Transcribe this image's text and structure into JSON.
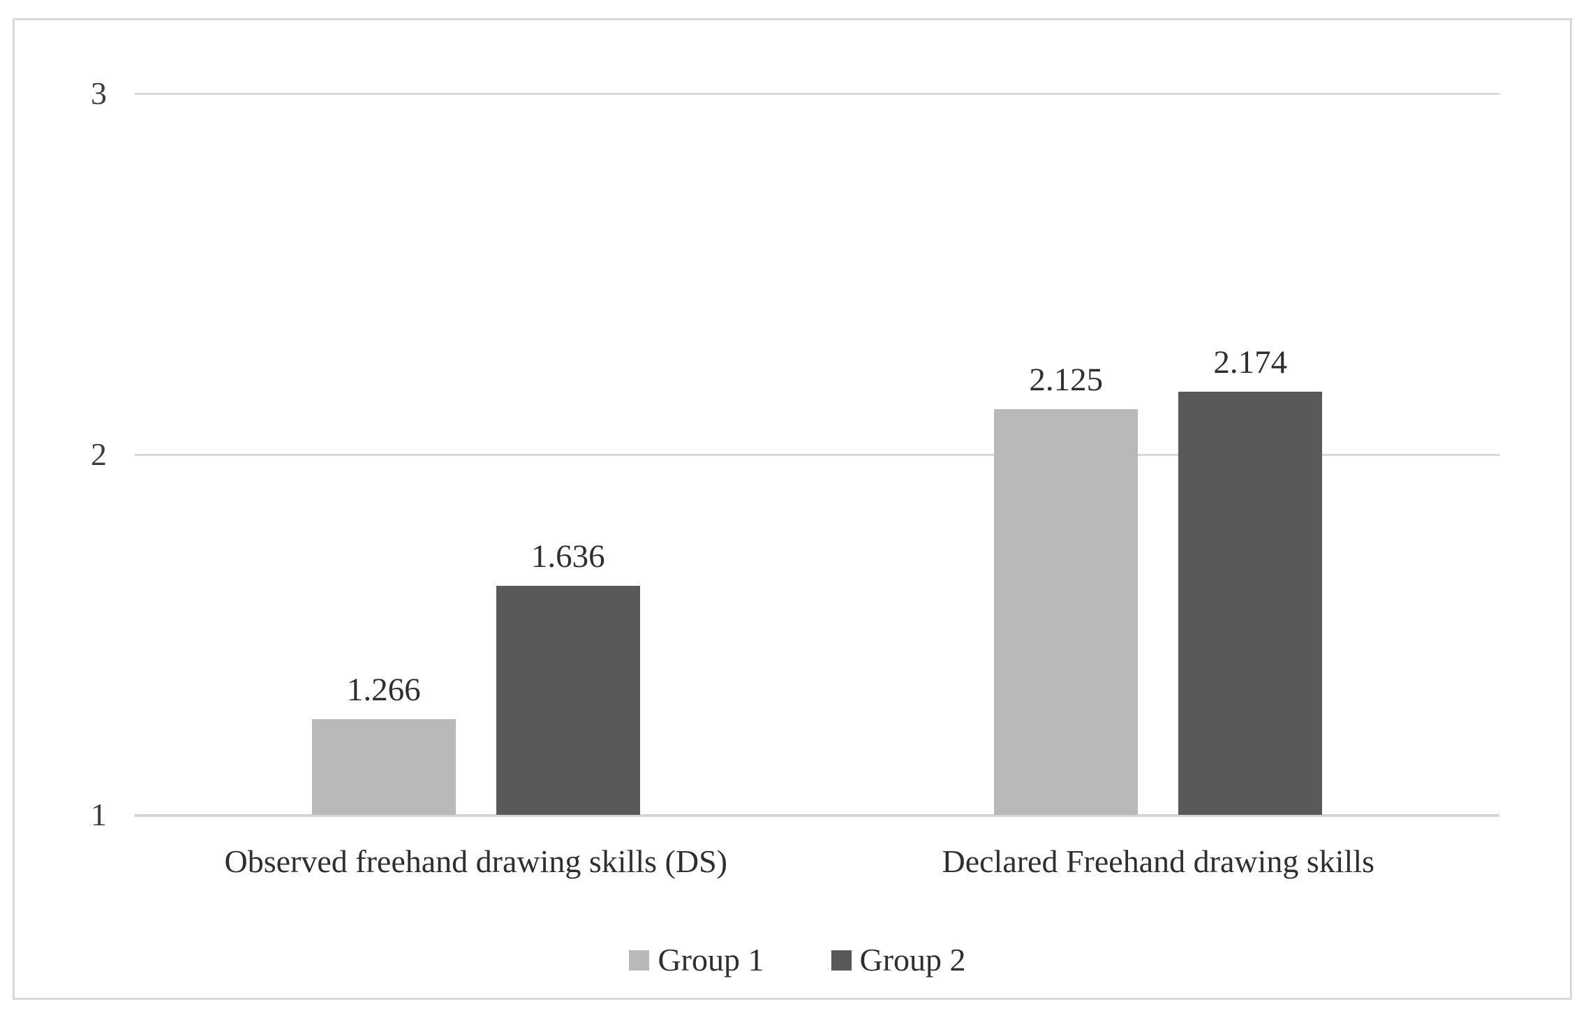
{
  "chart_data": {
    "type": "bar",
    "title": "",
    "xlabel": "",
    "ylabel": "",
    "categories": [
      "Observed freehand drawing skills (DS)",
      "Declared Freehand drawing skills"
    ],
    "series": [
      {
        "name": "Group 1",
        "color": "#b9b9b9",
        "values": [
          1.266,
          2.125
        ],
        "labels": [
          "1.266",
          "2.125"
        ]
      },
      {
        "name": "Group 2",
        "color": "#595959",
        "values": [
          1.636,
          2.174
        ],
        "labels": [
          "1.636",
          "2.174"
        ]
      }
    ],
    "ylim": [
      1,
      3
    ],
    "yticks": [
      1,
      2,
      3
    ],
    "grid": true,
    "legend_position": "bottom"
  },
  "colors": {
    "frame_border": "#d9d9d9",
    "gridline": "#d9d9d9",
    "axis_line": "#d4d4d4",
    "text": "#2f2f2f",
    "background": "#ffffff"
  }
}
